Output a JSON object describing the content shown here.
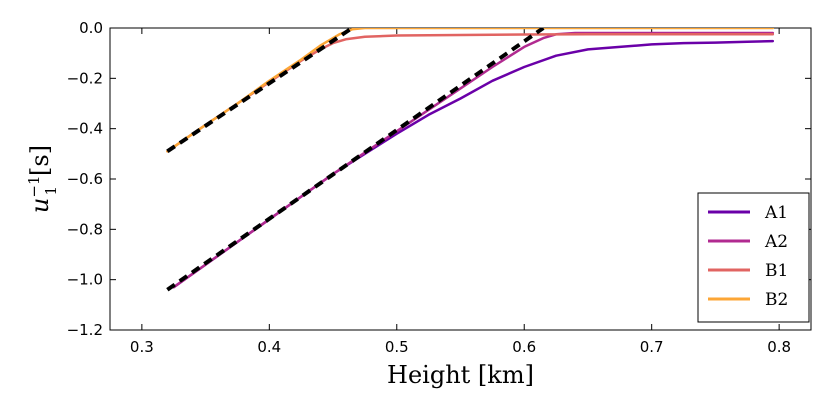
{
  "chart_data": {
    "type": "line",
    "title": "",
    "xlabel": "Height [km]",
    "ylabel": "u_1^{-1} [s]",
    "xlim": [
      0.275,
      0.825
    ],
    "ylim": [
      -1.2,
      0.0
    ],
    "xticks": [
      0.3,
      0.4,
      0.5,
      0.6,
      0.7,
      0.8
    ],
    "xtick_labels": [
      "0.3",
      "0.4",
      "0.5",
      "0.6",
      "0.7",
      "0.8"
    ],
    "yticks": [
      0.0,
      -0.2,
      -0.4,
      -0.6,
      -0.8,
      -1.0,
      -1.2
    ],
    "ytick_labels": [
      "0.0",
      "−0.2",
      "−0.4",
      "−0.6",
      "−0.8",
      "−1.0",
      "−1.2"
    ],
    "legend_position": "bottom-right",
    "grid": false,
    "series": [
      {
        "name": "A1",
        "color": "#6a00a8",
        "x": [
          0.325,
          0.35,
          0.375,
          0.4,
          0.425,
          0.45,
          0.475,
          0.5,
          0.525,
          0.55,
          0.575,
          0.6,
          0.625,
          0.65,
          0.675,
          0.7,
          0.725,
          0.75,
          0.775,
          0.795
        ],
        "y": [
          -1.03,
          -0.94,
          -0.85,
          -0.76,
          -0.67,
          -0.58,
          -0.5,
          -0.42,
          -0.345,
          -0.28,
          -0.21,
          -0.155,
          -0.11,
          -0.085,
          -0.075,
          -0.065,
          -0.06,
          -0.058,
          -0.055,
          -0.052
        ]
      },
      {
        "name": "A2",
        "color": "#b12a90",
        "x": [
          0.325,
          0.35,
          0.375,
          0.4,
          0.425,
          0.45,
          0.475,
          0.5,
          0.525,
          0.55,
          0.575,
          0.6,
          0.615,
          0.625,
          0.64,
          0.66,
          0.7,
          0.75,
          0.795
        ],
        "y": [
          -1.03,
          -0.94,
          -0.85,
          -0.76,
          -0.67,
          -0.58,
          -0.495,
          -0.41,
          -0.325,
          -0.24,
          -0.155,
          -0.075,
          -0.04,
          -0.025,
          -0.02,
          -0.02,
          -0.02,
          -0.02,
          -0.02
        ]
      },
      {
        "name": "B1",
        "color": "#e16462",
        "x": [
          0.32,
          0.35,
          0.375,
          0.4,
          0.425,
          0.44,
          0.45,
          0.46,
          0.475,
          0.5,
          0.55,
          0.6,
          0.65,
          0.7,
          0.75,
          0.795
        ],
        "y": [
          -0.49,
          -0.385,
          -0.3,
          -0.215,
          -0.13,
          -0.085,
          -0.06,
          -0.045,
          -0.035,
          -0.03,
          -0.028,
          -0.026,
          -0.025,
          -0.025,
          -0.025,
          -0.025
        ]
      },
      {
        "name": "B2",
        "color": "#fca636",
        "x": [
          0.32,
          0.35,
          0.375,
          0.4,
          0.425,
          0.44,
          0.455,
          0.465,
          0.475,
          0.5,
          0.55,
          0.6,
          0.65,
          0.7,
          0.75,
          0.795
        ],
        "y": [
          -0.49,
          -0.385,
          -0.3,
          -0.21,
          -0.125,
          -0.07,
          -0.025,
          -0.005,
          0.0,
          0.0,
          0.0,
          0.0,
          0.0,
          0.0,
          0.0,
          0.0
        ]
      }
    ],
    "fit_lines": [
      {
        "x": [
          0.32,
          0.465
        ],
        "y": [
          -0.49,
          0.0
        ]
      },
      {
        "x": [
          0.32,
          0.615
        ],
        "y": [
          -1.04,
          0.0
        ]
      }
    ]
  }
}
